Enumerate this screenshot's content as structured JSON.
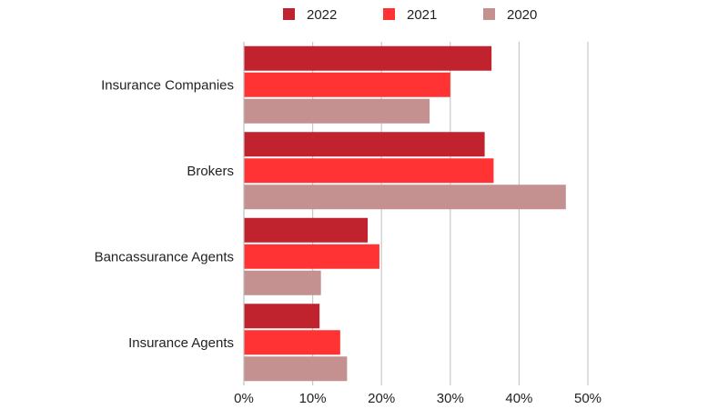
{
  "chart_data": {
    "type": "bar",
    "orientation": "horizontal",
    "categories": [
      "Insurance Companies",
      "Brokers",
      "Bancassurance Agents",
      "Insurance Agents"
    ],
    "series": [
      {
        "name": "2022",
        "color": "#c0232d",
        "values": [
          36,
          35,
          18,
          11
        ]
      },
      {
        "name": "2021",
        "color": "#ff3333",
        "values": [
          30,
          36.3,
          19.7,
          14
        ]
      },
      {
        "name": "2020",
        "color": "#c49090",
        "values": [
          27,
          46.8,
          11.2,
          15
        ]
      }
    ],
    "xlim": [
      0,
      50
    ],
    "xticks": [
      0,
      10,
      20,
      30,
      40,
      50
    ],
    "xtick_labels": [
      "0%",
      "10%",
      "20%",
      "30%",
      "40%",
      "50%"
    ],
    "title": "",
    "xlabel": "",
    "ylabel": "",
    "grid": "vertical",
    "legend": "top-center"
  }
}
